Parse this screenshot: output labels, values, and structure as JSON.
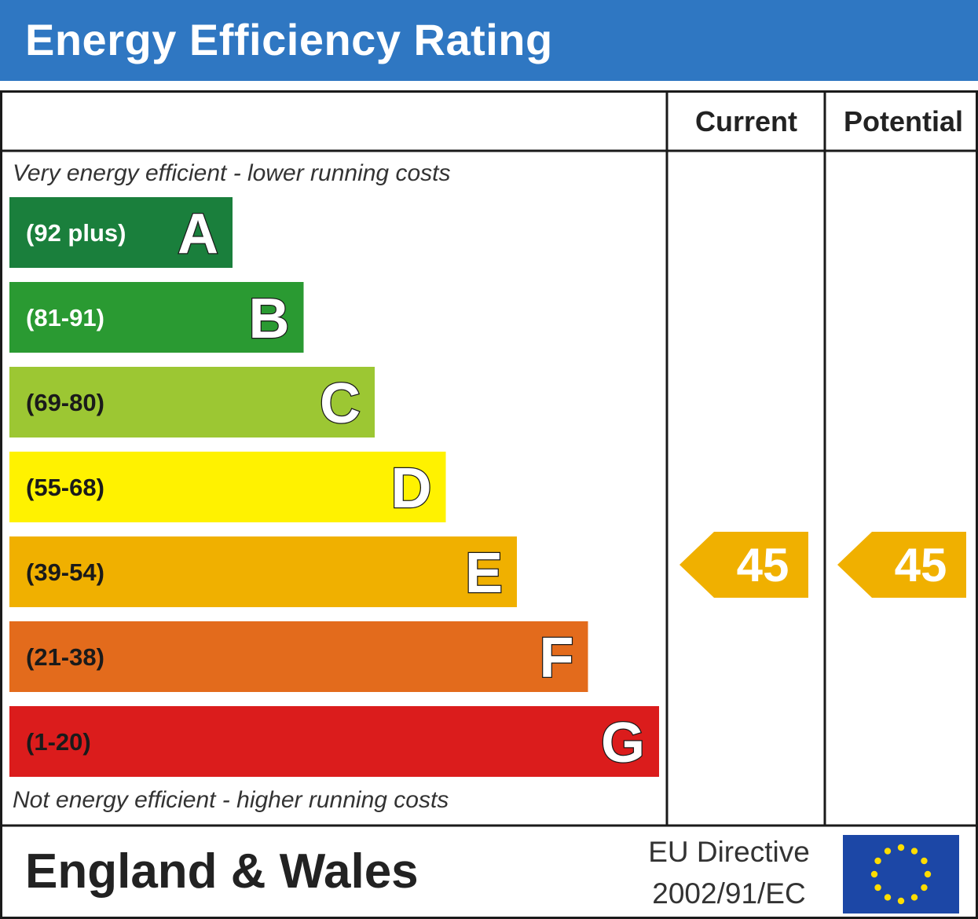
{
  "header": {
    "title": "Energy Efficiency Rating"
  },
  "columns": {
    "current": "Current",
    "potential": "Potential"
  },
  "notes": {
    "top": "Very energy efficient - lower running costs",
    "bottom": "Not energy efficient - higher running costs"
  },
  "footer": {
    "region": "England & Wales",
    "directive_line1": "EU Directive",
    "directive_line2": "2002/91/EC"
  },
  "chart_data": {
    "type": "bar",
    "title": "Energy Efficiency Rating",
    "categories": [
      "A",
      "B",
      "C",
      "D",
      "E",
      "F",
      "G"
    ],
    "ranges": [
      "(92 plus)",
      "(81-91)",
      "(69-80)",
      "(55-68)",
      "(39-54)",
      "(21-38)",
      "(1-20)"
    ],
    "colors": [
      "#1a7f3c",
      "#2a9a32",
      "#9cc733",
      "#fff200",
      "#f0b000",
      "#e36b1c",
      "#db1c1c"
    ],
    "range_text_colors": [
      "#ffffff",
      "#ffffff",
      "#1a1a1a",
      "#1a1a1a",
      "#1a1a1a",
      "#1a1a1a",
      "#1a1a1a"
    ],
    "current": {
      "value": 45,
      "band": "E",
      "color": "#f0b000"
    },
    "potential": {
      "value": 45,
      "band": "E",
      "color": "#f0b000"
    }
  }
}
